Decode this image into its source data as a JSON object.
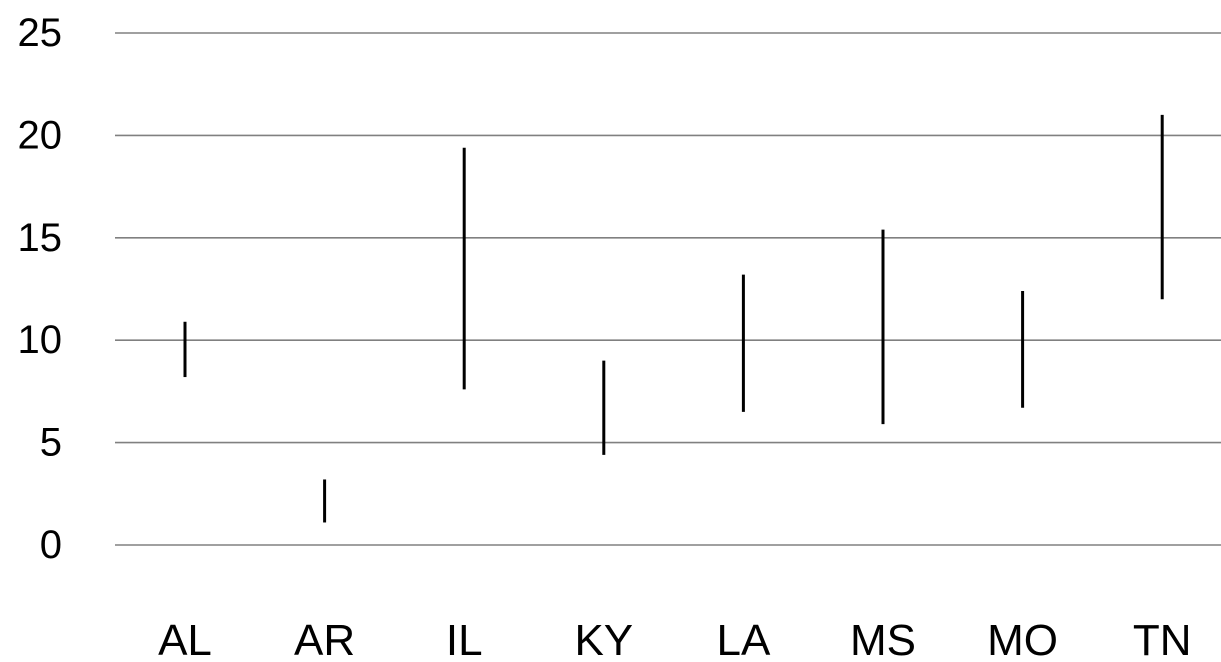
{
  "chart_data": {
    "type": "range",
    "title": "",
    "xlabel": "",
    "ylabel": "",
    "categories": [
      "AL",
      "AR",
      "IL",
      "KY",
      "LA",
      "MS",
      "MO",
      "TN"
    ],
    "series": [
      {
        "low": [
          8.2,
          1.1,
          7.6,
          4.4,
          6.5,
          5.9,
          6.7,
          12.0
        ],
        "high": [
          10.9,
          3.2,
          19.4,
          9.0,
          13.2,
          15.4,
          12.4,
          21.0
        ]
      }
    ],
    "y_ticks": [
      0,
      5,
      10,
      15,
      20,
      25
    ],
    "ylim": [
      0,
      25
    ],
    "grid": true,
    "legend": "none",
    "colors": {
      "bar": "#000000",
      "grid": "#808080",
      "text": "#000000"
    }
  }
}
